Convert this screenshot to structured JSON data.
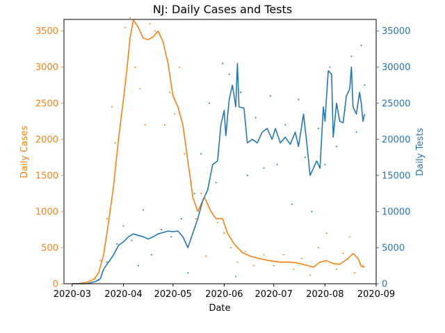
{
  "chart_data": {
    "type": "line",
    "title": "NJ: Daily Cases and Tests",
    "xlabel": "Date",
    "x_ticks": [
      "2020-03",
      "2020-04",
      "2020-05",
      "2020-06",
      "2020-07",
      "2020-08",
      "2020-09"
    ],
    "x_range": [
      "2020-02-25",
      "2020-09-01"
    ],
    "grid": false,
    "colors": {
      "cases": "#ff7f0e",
      "tests": "#1f77b4"
    },
    "left_axis": {
      "label": "Daily Cases",
      "ylim": [
        0,
        3660
      ],
      "ticks": [
        0,
        500,
        1000,
        1500,
        2000,
        2500,
        3000,
        3500
      ]
    },
    "right_axis": {
      "label": "Daily Tests",
      "ylim": [
        0,
        36600
      ],
      "ticks": [
        0,
        5000,
        10000,
        15000,
        20000,
        25000,
        30000,
        35000
      ]
    },
    "series": [
      {
        "axis": "left",
        "style": "line",
        "points": [
          [
            "2020-03-01",
            0
          ],
          [
            "2020-03-05",
            5
          ],
          [
            "2020-03-10",
            20
          ],
          [
            "2020-03-14",
            60
          ],
          [
            "2020-03-17",
            150
          ],
          [
            "2020-03-20",
            400
          ],
          [
            "2020-03-23",
            850
          ],
          [
            "2020-03-26",
            1350
          ],
          [
            "2020-03-29",
            2000
          ],
          [
            "2020-04-01",
            2550
          ],
          [
            "2020-04-03",
            2950
          ],
          [
            "2020-04-05",
            3400
          ],
          [
            "2020-04-07",
            3650
          ],
          [
            "2020-04-10",
            3550
          ],
          [
            "2020-04-13",
            3400
          ],
          [
            "2020-04-16",
            3380
          ],
          [
            "2020-04-19",
            3420
          ],
          [
            "2020-04-22",
            3500
          ],
          [
            "2020-04-25",
            3350
          ],
          [
            "2020-04-28",
            3050
          ],
          [
            "2020-05-01",
            2600
          ],
          [
            "2020-05-04",
            2450
          ],
          [
            "2020-05-07",
            2200
          ],
          [
            "2020-05-10",
            1700
          ],
          [
            "2020-05-13",
            1200
          ],
          [
            "2020-05-16",
            1000
          ],
          [
            "2020-05-20",
            1200
          ],
          [
            "2020-05-24",
            1000
          ],
          [
            "2020-05-27",
            900
          ],
          [
            "2020-05-31",
            900
          ],
          [
            "2020-06-03",
            700
          ],
          [
            "2020-06-07",
            550
          ],
          [
            "2020-06-12",
            430
          ],
          [
            "2020-06-17",
            380
          ],
          [
            "2020-06-22",
            350
          ],
          [
            "2020-06-28",
            320
          ],
          [
            "2020-07-05",
            300
          ],
          [
            "2020-07-10",
            300
          ],
          [
            "2020-07-15",
            290
          ],
          [
            "2020-07-20",
            260
          ],
          [
            "2020-07-25",
            230
          ],
          [
            "2020-07-29",
            300
          ],
          [
            "2020-08-02",
            320
          ],
          [
            "2020-08-06",
            280
          ],
          [
            "2020-08-10",
            270
          ],
          [
            "2020-08-15",
            350
          ],
          [
            "2020-08-18",
            420
          ],
          [
            "2020-08-21",
            350
          ],
          [
            "2020-08-23",
            240
          ],
          [
            "2020-08-25",
            230
          ]
        ]
      },
      {
        "axis": "right",
        "style": "line",
        "points": [
          [
            "2020-03-01",
            0
          ],
          [
            "2020-03-10",
            0
          ],
          [
            "2020-03-15",
            300
          ],
          [
            "2020-03-18",
            700
          ],
          [
            "2020-03-20",
            2000
          ],
          [
            "2020-03-23",
            3000
          ],
          [
            "2020-03-26",
            4000
          ],
          [
            "2020-03-29",
            5300
          ],
          [
            "2020-04-01",
            5800
          ],
          [
            "2020-04-04",
            6500
          ],
          [
            "2020-04-07",
            6900
          ],
          [
            "2020-04-10",
            6700
          ],
          [
            "2020-04-13",
            6500
          ],
          [
            "2020-04-16",
            6200
          ],
          [
            "2020-04-19",
            6500
          ],
          [
            "2020-04-22",
            6900
          ],
          [
            "2020-04-25",
            7100
          ],
          [
            "2020-04-28",
            7300
          ],
          [
            "2020-05-01",
            7200
          ],
          [
            "2020-05-04",
            7300
          ],
          [
            "2020-05-07",
            6500
          ],
          [
            "2020-05-10",
            5000
          ],
          [
            "2020-05-13",
            7000
          ],
          [
            "2020-05-16",
            9000
          ],
          [
            "2020-05-19",
            11500
          ],
          [
            "2020-05-22",
            13000
          ],
          [
            "2020-05-25",
            16500
          ],
          [
            "2020-05-28",
            17000
          ],
          [
            "2020-05-30",
            22000
          ],
          [
            "2020-06-01",
            24000
          ],
          [
            "2020-06-02",
            20500
          ],
          [
            "2020-06-04",
            25500
          ],
          [
            "2020-06-06",
            27500
          ],
          [
            "2020-06-08",
            24500
          ],
          [
            "2020-06-09",
            30500
          ],
          [
            "2020-06-10",
            24500
          ],
          [
            "2020-06-13",
            24300
          ],
          [
            "2020-06-15",
            19500
          ],
          [
            "2020-06-18",
            20000
          ],
          [
            "2020-06-21",
            19500
          ],
          [
            "2020-06-24",
            21000
          ],
          [
            "2020-06-27",
            21500
          ],
          [
            "2020-06-30",
            20000
          ],
          [
            "2020-07-02",
            21500
          ],
          [
            "2020-07-05",
            19500
          ],
          [
            "2020-07-08",
            20300
          ],
          [
            "2020-07-11",
            19300
          ],
          [
            "2020-07-14",
            21000
          ],
          [
            "2020-07-16",
            19000
          ],
          [
            "2020-07-19",
            23500
          ],
          [
            "2020-07-21",
            19500
          ],
          [
            "2020-07-23",
            15000
          ],
          [
            "2020-07-25",
            16000
          ],
          [
            "2020-07-27",
            17000
          ],
          [
            "2020-07-29",
            16000
          ],
          [
            "2020-07-31",
            24500
          ],
          [
            "2020-08-01",
            22500
          ],
          [
            "2020-08-02",
            26000
          ],
          [
            "2020-08-03",
            29500
          ],
          [
            "2020-08-05",
            29000
          ],
          [
            "2020-08-06",
            20300
          ],
          [
            "2020-08-08",
            25000
          ],
          [
            "2020-08-10",
            22500
          ],
          [
            "2020-08-12",
            22300
          ],
          [
            "2020-08-14",
            26000
          ],
          [
            "2020-08-16",
            27000
          ],
          [
            "2020-08-17",
            30000
          ],
          [
            "2020-08-18",
            24500
          ],
          [
            "2020-08-20",
            23500
          ],
          [
            "2020-08-22",
            26500
          ],
          [
            "2020-08-23",
            25000
          ],
          [
            "2020-08-24",
            22500
          ],
          [
            "2020-08-25",
            23500
          ]
        ]
      },
      {
        "axis": "left",
        "style": "scatter",
        "points": [
          [
            "2020-03-15",
            80
          ],
          [
            "2020-03-18",
            320
          ],
          [
            "2020-03-22",
            900
          ],
          [
            "2020-03-25",
            2450
          ],
          [
            "2020-03-27",
            1950
          ],
          [
            "2020-03-30",
            2200
          ],
          [
            "2020-04-02",
            3550
          ],
          [
            "2020-04-05",
            3680
          ],
          [
            "2020-04-08",
            3000
          ],
          [
            "2020-04-11",
            2700
          ],
          [
            "2020-04-14",
            2200
          ],
          [
            "2020-04-17",
            3600
          ],
          [
            "2020-04-20",
            3500
          ],
          [
            "2020-04-23",
            3450
          ],
          [
            "2020-04-26",
            2200
          ],
          [
            "2020-04-29",
            2650
          ],
          [
            "2020-05-02",
            2350
          ],
          [
            "2020-05-05",
            3000
          ],
          [
            "2020-05-08",
            1800
          ],
          [
            "2020-05-12",
            1400
          ],
          [
            "2020-05-15",
            900
          ],
          [
            "2020-05-18",
            1250
          ],
          [
            "2020-05-21",
            380
          ],
          [
            "2020-05-24",
            1000
          ],
          [
            "2020-05-28",
            850
          ],
          [
            "2020-06-01",
            700
          ],
          [
            "2020-06-05",
            500
          ],
          [
            "2020-06-09",
            300
          ],
          [
            "2020-06-14",
            450
          ],
          [
            "2020-06-19",
            250
          ],
          [
            "2020-06-25",
            400
          ],
          [
            "2020-07-01",
            250
          ],
          [
            "2020-07-07",
            400
          ],
          [
            "2020-07-13",
            200
          ],
          [
            "2020-07-18",
            350
          ],
          [
            "2020-07-23",
            120
          ],
          [
            "2020-07-28",
            500
          ],
          [
            "2020-08-02",
            700
          ],
          [
            "2020-08-08",
            200
          ],
          [
            "2020-08-12",
            420
          ],
          [
            "2020-08-16",
            650
          ],
          [
            "2020-08-19",
            150
          ],
          [
            "2020-08-24",
            250
          ]
        ]
      },
      {
        "axis": "right",
        "style": "scatter",
        "points": [
          [
            "2020-03-17",
            500
          ],
          [
            "2020-03-22",
            3000
          ],
          [
            "2020-03-28",
            5500
          ],
          [
            "2020-04-01",
            8000
          ],
          [
            "2020-04-06",
            6000
          ],
          [
            "2020-04-10",
            2500
          ],
          [
            "2020-04-13",
            10200
          ],
          [
            "2020-04-18",
            4000
          ],
          [
            "2020-04-24",
            7500
          ],
          [
            "2020-04-30",
            6500
          ],
          [
            "2020-05-06",
            9000
          ],
          [
            "2020-05-10",
            1500
          ],
          [
            "2020-05-14",
            12500
          ],
          [
            "2020-05-18",
            18000
          ],
          [
            "2020-05-23",
            25000
          ],
          [
            "2020-05-27",
            14000
          ],
          [
            "2020-05-31",
            30500
          ],
          [
            "2020-06-04",
            29000
          ],
          [
            "2020-06-08",
            1000
          ],
          [
            "2020-06-11",
            26500
          ],
          [
            "2020-06-15",
            15000
          ],
          [
            "2020-06-20",
            23000
          ],
          [
            "2020-06-25",
            16000
          ],
          [
            "2020-06-29",
            26000
          ],
          [
            "2020-07-03",
            16500
          ],
          [
            "2020-07-08",
            22000
          ],
          [
            "2020-07-12",
            11000
          ],
          [
            "2020-07-16",
            25500
          ],
          [
            "2020-07-20",
            17500
          ],
          [
            "2020-07-24",
            10000
          ],
          [
            "2020-07-28",
            21500
          ],
          [
            "2020-08-01",
            16500
          ],
          [
            "2020-08-04",
            30000
          ],
          [
            "2020-08-08",
            19000
          ],
          [
            "2020-08-13",
            24000
          ],
          [
            "2020-08-17",
            31500
          ],
          [
            "2020-08-20",
            21000
          ],
          [
            "2020-08-23",
            33000
          ],
          [
            "2020-08-25",
            27500
          ]
        ]
      }
    ]
  }
}
